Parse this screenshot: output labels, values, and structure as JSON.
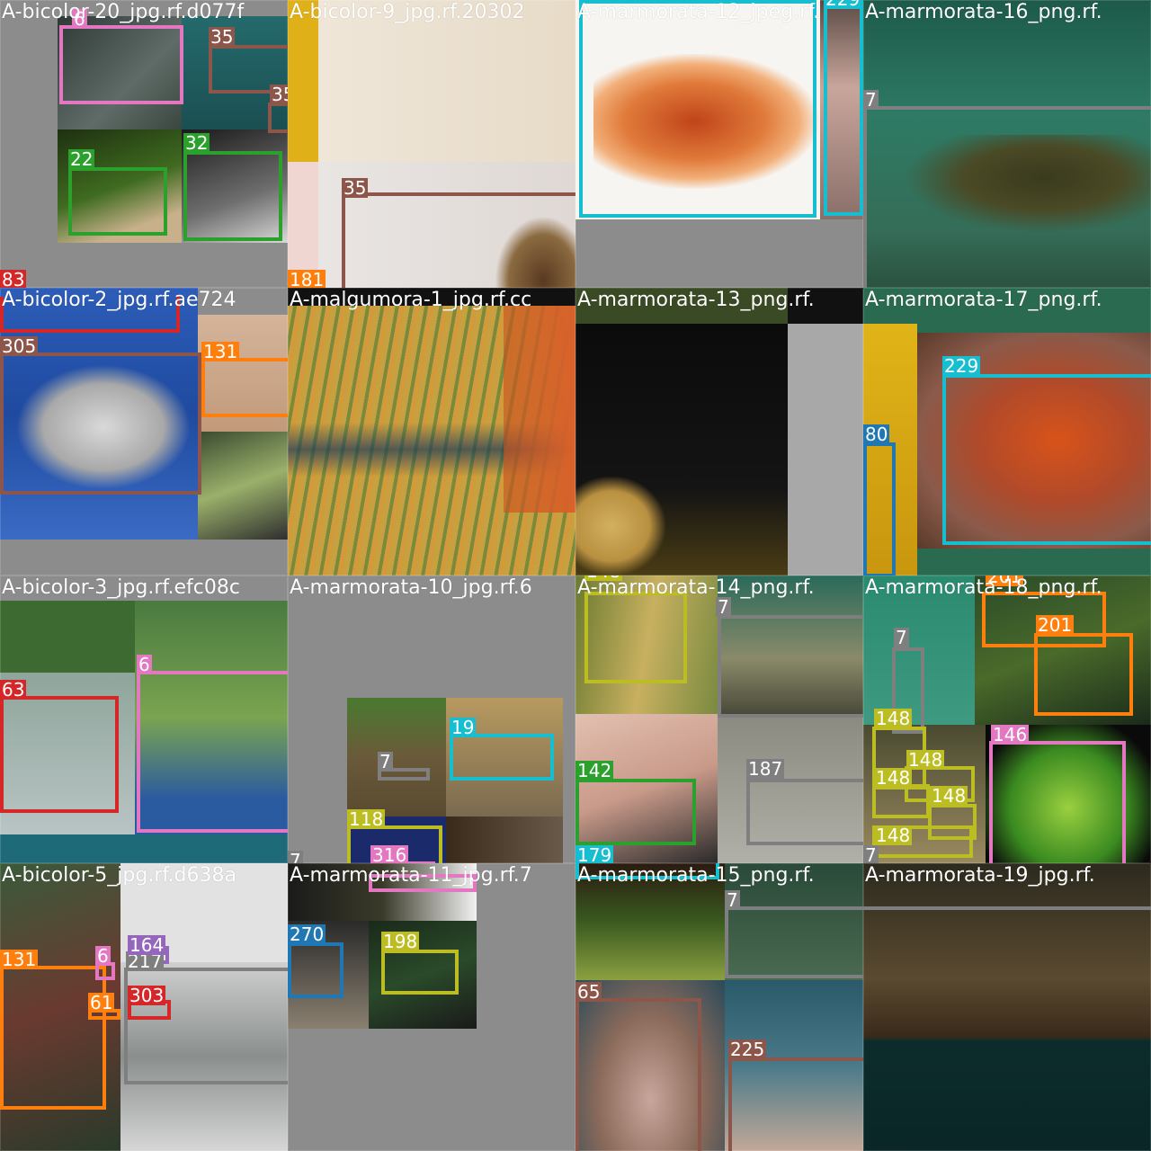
{
  "tiles": [
    {
      "title": "A-bicolor-20_jpg.rf.d077f"
    },
    {
      "title": "A-bicolor-9_jpg.rf.20302"
    },
    {
      "title": "A-marmorata-12_jpeg.rf."
    },
    {
      "title": "A-marmorata-16_png.rf."
    },
    {
      "title": "A-bicolor-2_jpg.rf.ae724"
    },
    {
      "title": "A-malgumora-1_jpg.rf.cc"
    },
    {
      "title": "A-marmorata-13_png.rf."
    },
    {
      "title": "A-marmorata-17_png.rf."
    },
    {
      "title": "A-bicolor-3_jpg.rf.efc08c"
    },
    {
      "title": "A-marmorata-10_jpg.rf.6"
    },
    {
      "title": "A-marmorata-14_png.rf."
    },
    {
      "title": "A-marmorata-18_png.rf."
    },
    {
      "title": "A-bicolor-5_jpg.rf.d638a"
    },
    {
      "title": "A-marmorata-11_jpg.rf.7"
    },
    {
      "title": "A-marmorata-15_png.rf."
    },
    {
      "title": "A-marmorata-19_jpg.rf."
    }
  ],
  "class_colors": {
    "6": "#e377c2",
    "7": "#7f7f7f",
    "19": "#17becf",
    "22": "#2ca02c",
    "32": "#2ca02c",
    "35": "#8c564b",
    "61": "#ff7f0e",
    "63": "#d62728",
    "65": "#8c564b",
    "80": "#1f77b4",
    "83": "#d62728",
    "118": "#bcbd22",
    "131": "#ff7f0e",
    "142": "#2ca02c",
    "146": "#e377c2",
    "148": "#bcbd22",
    "164": "#9467bd",
    "179": "#17becf",
    "181": "#ff7f0e",
    "187": "#7f7f7f",
    "198": "#bcbd22",
    "201": "#ff7f0e",
    "217": "#7f7f7f",
    "225": "#8c564b",
    "229": "#17becf",
    "270": "#1f77b4",
    "303": "#d62728",
    "305": "#8c564b",
    "316": "#e377c2"
  },
  "labels": {
    "t0_a": "6",
    "t0_b": "35",
    "t0_c": "35",
    "t0_d": "22",
    "t0_e": "32",
    "t0_f": "83",
    "t1_a": "35",
    "t1_b": "181",
    "t2_a": "229",
    "t3_a": "7",
    "t4_a": "305",
    "t4_b": "131",
    "t7_a": "229",
    "t7_b": "80",
    "t8_a": "63",
    "t8_b": "6",
    "t9_a": "19",
    "t9_b": "7",
    "t9_c": "118",
    "t9_d": "316",
    "t9_e": "7",
    "t10_a": "148",
    "t10_b": "7",
    "t10_c": "142",
    "t10_d": "187",
    "t10_e": "179",
    "t11_a": "201",
    "t11_b": "201",
    "t11_c": "7",
    "t11_d": "148",
    "t11_e": "148",
    "t11_f": "148",
    "t11_g": "148",
    "t11_h": "148",
    "t11_i": "146",
    "t11_j": "7",
    "t12_a": "164",
    "t12_b": "217",
    "t12_c": "131",
    "t12_d": "6",
    "t12_e": "303",
    "t12_f": "61",
    "t13_a": "270",
    "t13_b": "198",
    "t14_a": "7",
    "t14_b": "65",
    "t14_c": "225"
  }
}
